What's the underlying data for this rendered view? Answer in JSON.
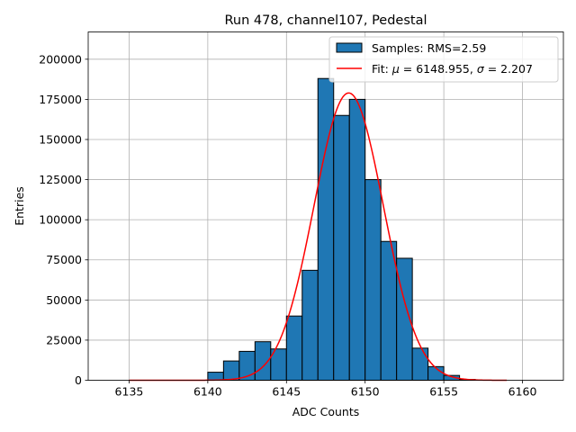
{
  "chart_data": {
    "type": "bar",
    "title": "Run 478, channel107, Pedestal",
    "xlabel": "ADC Counts",
    "ylabel": "Entries",
    "xlim": [
      6132.4,
      6162.6
    ],
    "ylim": [
      0,
      217000
    ],
    "grid": true,
    "x_ticks": [
      6135,
      6140,
      6145,
      6150,
      6155,
      6160
    ],
    "y_ticks": [
      0,
      25000,
      50000,
      75000,
      100000,
      125000,
      150000,
      175000,
      200000
    ],
    "bin_width": 1,
    "bins": [
      {
        "x": 6140,
        "count": 5000
      },
      {
        "x": 6141,
        "count": 12000
      },
      {
        "x": 6142,
        "count": 18000
      },
      {
        "x": 6143,
        "count": 24000
      },
      {
        "x": 6144,
        "count": 19500
      },
      {
        "x": 6145,
        "count": 40000
      },
      {
        "x": 6146,
        "count": 68500
      },
      {
        "x": 6147,
        "count": 188000
      },
      {
        "x": 6148,
        "count": 165000
      },
      {
        "x": 6149,
        "count": 175000
      },
      {
        "x": 6150,
        "count": 125000
      },
      {
        "x": 6151,
        "count": 86500
      },
      {
        "x": 6152,
        "count": 76000
      },
      {
        "x": 6153,
        "count": 20000
      },
      {
        "x": 6154,
        "count": 8500
      },
      {
        "x": 6155,
        "count": 3000
      },
      {
        "x": 6156,
        "count": 500
      }
    ],
    "fit": {
      "mu": 6148.955,
      "sigma": 2.207,
      "amplitude": 179000,
      "x_range": [
        6135,
        6159
      ]
    },
    "legend": {
      "position": "top-right",
      "samples_label": "Samples: RMS=2.59",
      "fit_prefix": "Fit: ",
      "fit_mu_symbol": "μ",
      "fit_mu_text": " = 6148.955, ",
      "fit_sigma_symbol": "σ",
      "fit_sigma_text": " = 2.207"
    },
    "colors": {
      "bar_fill": "#1f77b4",
      "bar_edge": "#000000",
      "fit_line": "#ff0000",
      "grid": "#b0b0b0"
    }
  }
}
